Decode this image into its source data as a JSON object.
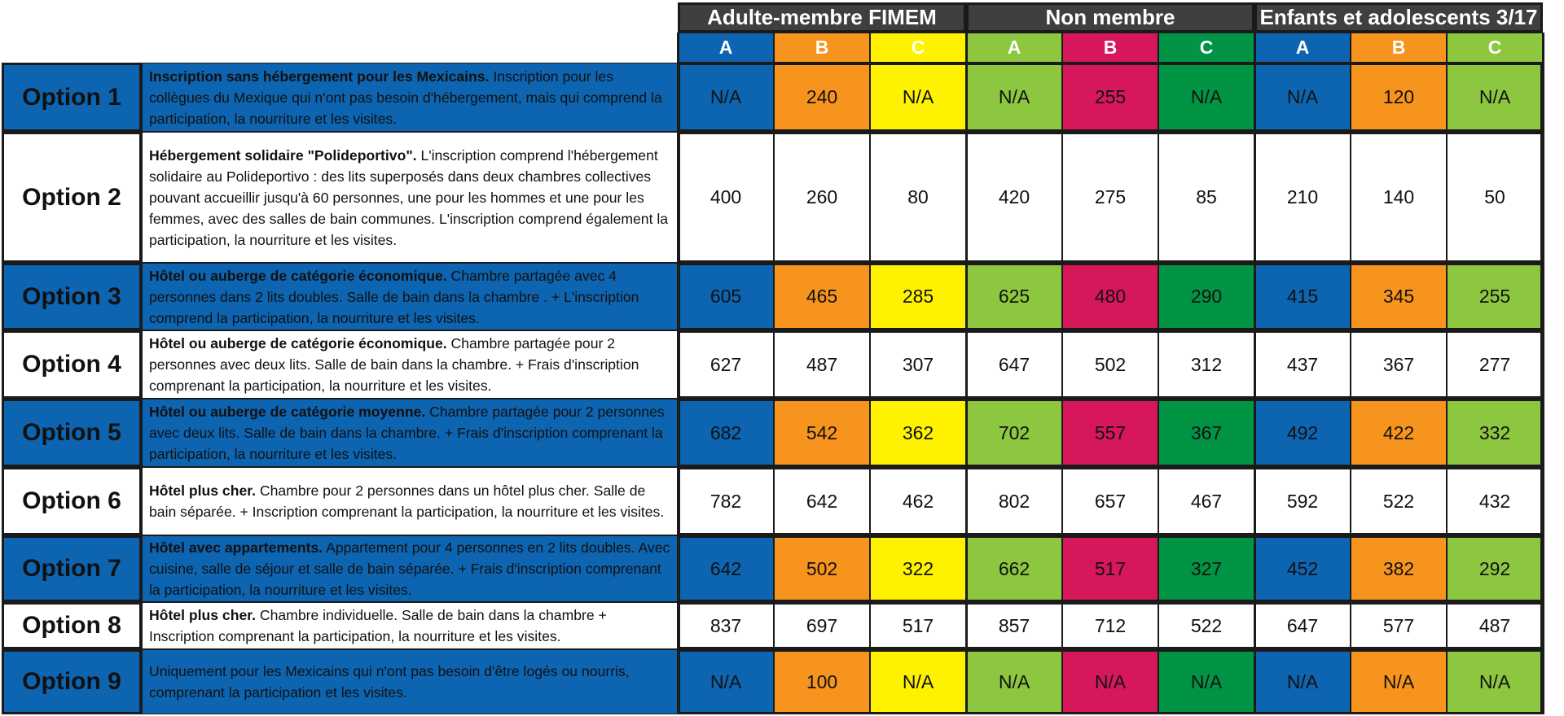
{
  "header": {
    "groups": [
      "Adulte-membre FIMEM",
      "Non membre",
      "Enfants et adolescents 3/17"
    ],
    "subs": [
      "A",
      "B",
      "C",
      "A",
      "B",
      "C",
      "A",
      "B",
      "C"
    ]
  },
  "colors": {
    "blue": "#0d64b0",
    "orange": "#f7941d",
    "yellow": "#fff200",
    "lightgreen": "#8dc63f",
    "magenta": "#d6175b",
    "darkgreen": "#009444",
    "white": "#ffffff",
    "header_dark": "#3f3f3f",
    "border": "#1a1a1a"
  },
  "rows": [
    {
      "option": "Option 1",
      "desc_bold": "Inscription sans hébergement pour les Mexicains.",
      "desc_text": " Inscription pour les collègues du Mexique qui n'ont pas besoin d'hébergement, mais qui comprend la participation, la nourriture et les visites.",
      "values": [
        "N/A",
        "240",
        "N/A",
        "N/A",
        "255",
        "N/A",
        "N/A",
        "120",
        "N/A"
      ]
    },
    {
      "option": "Option 2",
      "desc_bold": "Hébergement solidaire \"Polideportivo\".",
      "desc_text": " L'inscription comprend l'hébergement solidaire au Polideportivo : des lits superposés dans deux chambres collectives pouvant accueillir jusqu'à 60 personnes, une pour les hommes et une pour les femmes, avec des salles de bain communes. L'inscription comprend également la participation, la nourriture et les visites.",
      "values": [
        "400",
        "260",
        "80",
        "420",
        "275",
        "85",
        "210",
        "140",
        "50"
      ]
    },
    {
      "option": "Option 3",
      "desc_bold": "Hôtel ou auberge de catégorie économique.",
      "desc_text": " Chambre partagée avec 4 personnes dans 2 lits doubles. Salle de bain dans la chambre . + L'inscription comprend la participation, la nourriture et les visites.",
      "values": [
        "605",
        "465",
        "285",
        "625",
        "480",
        "290",
        "415",
        "345",
        "255"
      ]
    },
    {
      "option": "Option 4",
      "desc_bold": "Hôtel ou auberge de catégorie économique.",
      "desc_text": " Chambre partagée pour 2 personnes avec deux lits. Salle de bain dans la chambre. + Frais d'inscription comprenant la participation, la nourriture et les visites.",
      "values": [
        "627",
        "487",
        "307",
        "647",
        "502",
        "312",
        "437",
        "367",
        "277"
      ]
    },
    {
      "option": "Option 5",
      "desc_bold": "Hôtel ou auberge de catégorie moyenne.",
      "desc_text": " Chambre partagée pour 2 personnes avec deux lits. Salle de bain dans la chambre. + Frais d'inscription comprenant la participation, la nourriture et les visites.",
      "values": [
        "682",
        "542",
        "362",
        "702",
        "557",
        "367",
        "492",
        "422",
        "332"
      ]
    },
    {
      "option": "Option 6",
      "desc_bold": "Hôtel plus cher.",
      "desc_text": " Chambre pour 2 personnes dans un hôtel plus cher. Salle de bain séparée. + Inscription comprenant la participation, la nourriture et les visites.",
      "values": [
        "782",
        "642",
        "462",
        "802",
        "657",
        "467",
        "592",
        "522",
        "432"
      ]
    },
    {
      "option": "Option 7",
      "desc_bold": "Hôtel avec appartements.",
      "desc_text": " Appartement pour 4 personnes en 2 lits doubles. Avec cuisine, salle de séjour et salle de bain séparée. + Frais d'inscription comprenant la participation, la nourriture et les visites.",
      "values": [
        "642",
        "502",
        "322",
        "662",
        "517",
        "327",
        "452",
        "382",
        "292"
      ]
    },
    {
      "option": "Option 8",
      "desc_bold": "Hôtel plus cher.",
      "desc_text": " Chambre individuelle. Salle de bain dans la chambre  + Inscription comprenant la participation, la nourriture et les visites.",
      "values": [
        "837",
        "697",
        "517",
        "857",
        "712",
        "522",
        "647",
        "577",
        "487"
      ]
    },
    {
      "option": "Option 9",
      "desc_bold": "",
      "desc_text": "Uniquement pour les Mexicains qui n'ont pas besoin d'être logés ou nourris, comprenant la participation et les visites.",
      "values": [
        "N/A",
        "100",
        "N/A",
        "N/A",
        "N/A",
        "N/A",
        "N/A",
        "N/A",
        "N/A"
      ]
    }
  ]
}
